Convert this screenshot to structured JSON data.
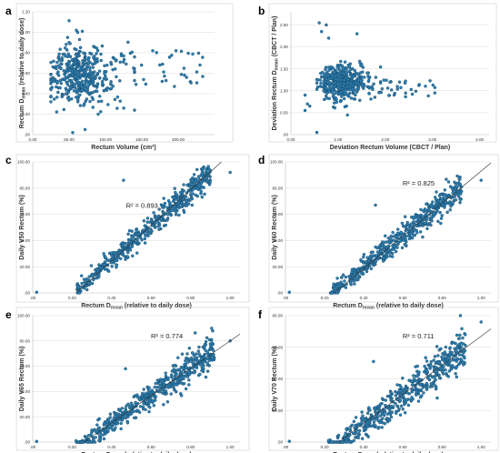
{
  "chart_data": [
    {
      "panel": "a",
      "type": "scatter",
      "xlabel": "Rectum Volume (cm³)",
      "ylabel_main": "Rectum D",
      "ylabel_sub": "mean",
      "ylabel_tail": " (relative to daily dose)",
      "xlim": [
        0,
        250
      ],
      "ylim": [
        0,
        1.2
      ],
      "xticks": [
        "0.00",
        "50.00",
        "100.00",
        "150.00",
        "200.00"
      ],
      "xtick_values": [
        0,
        50,
        100,
        150,
        200
      ],
      "yticks": [
        ".00",
        "0.20",
        "0.40",
        "0.60",
        "0.80",
        "1.00",
        "1.20"
      ],
      "ytick_values": [
        0,
        0.2,
        0.4,
        0.6,
        0.8,
        1.0,
        1.2
      ],
      "cluster": {
        "x_range": [
          25,
          140
        ],
        "x_mode": 55,
        "y_mean": 0.58,
        "y_sd": 0.14
      },
      "tail": {
        "x_range": [
          110,
          240
        ],
        "y_range": [
          0.45,
          0.82
        ]
      },
      "points": [
        [
          60,
          1.02
        ],
        [
          55,
          0.02
        ],
        [
          72,
          0.05
        ],
        [
          90,
          0.2
        ],
        [
          230,
          0.68
        ],
        [
          165,
          0.82
        ],
        [
          178,
          0.52
        ],
        [
          48,
          0.95
        ],
        [
          50,
          0.9
        ]
      ],
      "r2": null
    },
    {
      "panel": "b",
      "type": "scatter",
      "xlabel": "Deviation Rectum Volume (CBCT / Plan)",
      "ylabel_main": "Deviation Rectum D",
      "ylabel_sub": "mean",
      "ylabel_tail": " (CBCT / Plan)",
      "xlim": [
        0,
        4.2
      ],
      "ylim": [
        0,
        2.8
      ],
      "xticks": [
        "0.00",
        "1.00",
        "2.00",
        "3.00",
        "4.00"
      ],
      "xtick_values": [
        0,
        1,
        2,
        3,
        4
      ],
      "yticks": [
        ".00",
        "0.50",
        "1.00",
        "1.50",
        "2.00",
        "2.50"
      ],
      "ytick_values": [
        0,
        0.5,
        1.0,
        1.5,
        2.0,
        2.5
      ],
      "cluster": {
        "x_range": [
          0.55,
          1.9
        ],
        "x_mode": 0.95,
        "y_mean": 1.2,
        "y_sd": 0.2
      },
      "tail": {
        "x_range": [
          1.6,
          3.1
        ],
        "y_range": [
          0.85,
          1.25
        ]
      },
      "points": [
        [
          0.6,
          2.55
        ],
        [
          0.75,
          2.5
        ],
        [
          0.65,
          2.35
        ],
        [
          0.8,
          2.2
        ],
        [
          1.4,
          2.3
        ],
        [
          0.3,
          0.9
        ],
        [
          0.35,
          0.7
        ],
        [
          0.4,
          0.65
        ],
        [
          0.3,
          0.55
        ],
        [
          3.05,
          0.95
        ],
        [
          0.55,
          0.05
        ]
      ],
      "r2": null
    },
    {
      "panel": "c",
      "type": "scatter",
      "xlabel_main": "Rectum D",
      "xlabel_sub": "mean",
      "xlabel_tail": " (relative to daily dose)",
      "ylabel": "Daily V50 Rectum (%)",
      "xlim": [
        0,
        1.05
      ],
      "ylim": [
        0,
        100
      ],
      "xticks": [
        ".00",
        "0.20",
        "0.40",
        "0.60",
        "0.80",
        "1.00"
      ],
      "xtick_values": [
        0,
        0.2,
        0.4,
        0.6,
        0.8,
        1.0
      ],
      "yticks": [
        ".00",
        "20.00",
        "40.00",
        "60.00",
        "80.00",
        "100.00"
      ],
      "ytick_values": [
        0,
        20,
        40,
        60,
        80,
        100
      ],
      "relation": {
        "x_range": [
          0.22,
          0.9
        ],
        "slope": 133,
        "intercept": -28,
        "noise": 4
      },
      "points": [
        [
          0.02,
          0.5
        ],
        [
          0.46,
          86
        ],
        [
          0.36,
          30
        ],
        [
          0.24,
          2
        ],
        [
          1.0,
          92
        ]
      ],
      "regression": {
        "slope": 136,
        "intercept": -30
      },
      "r2": "R² = 0.893"
    },
    {
      "panel": "d",
      "type": "scatter",
      "xlabel_main": "Rectum D",
      "xlabel_sub": "mean",
      "xlabel_tail": " (relative to daily dose)",
      "ylabel": "Daily V60 Rectum (%)",
      "xlim": [
        0,
        1.05
      ],
      "ylim": [
        0,
        100
      ],
      "xticks": [
        ".00",
        "0.20",
        "0.40",
        "0.60",
        "0.80",
        "1.00"
      ],
      "xtick_values": [
        0,
        0.2,
        0.4,
        0.6,
        0.8,
        1.0
      ],
      "yticks": [
        ".00",
        "20.00",
        "40.00",
        "60.00",
        "80.00",
        "100.00"
      ],
      "ytick_values": [
        0,
        20,
        40,
        60,
        80,
        100
      ],
      "relation": {
        "x_range": [
          0.22,
          0.9
        ],
        "slope": 120,
        "intercept": -28,
        "noise": 4.5
      },
      "points": [
        [
          0.02,
          0.5
        ],
        [
          0.46,
          67
        ],
        [
          0.24,
          1
        ],
        [
          1.0,
          86
        ]
      ],
      "regression": {
        "slope": 124,
        "intercept": -31
      },
      "r2": "R² = 0.825"
    },
    {
      "panel": "e",
      "type": "scatter",
      "xlabel_main": "Rectum D",
      "xlabel_sub": "mean",
      "xlabel_tail": " (relative to daily dose)",
      "ylabel": "Daily V65 Rectum (%)",
      "xlim": [
        0,
        1.05
      ],
      "ylim": [
        0,
        100
      ],
      "xticks": [
        ".00",
        "0.20",
        "0.40",
        "0.60",
        "0.80",
        "1.00"
      ],
      "xtick_values": [
        0,
        0.2,
        0.4,
        0.6,
        0.8,
        1.0
      ],
      "yticks": [
        ".00",
        "20.00",
        "40.00",
        "60.00",
        "80.00",
        "100.00"
      ],
      "ytick_values": [
        0,
        20,
        40,
        60,
        80,
        100
      ],
      "relation": {
        "x_range": [
          0.22,
          0.92
        ],
        "slope": 112,
        "intercept": -30,
        "noise": 5
      },
      "points": [
        [
          0.02,
          0.5
        ],
        [
          0.47,
          58
        ],
        [
          0.22,
          1
        ],
        [
          1.0,
          80
        ]
      ],
      "regression": {
        "slope": 108,
        "intercept": -28
      },
      "r2": "R² = 0.774"
    },
    {
      "panel": "f",
      "type": "scatter",
      "xlabel_main": "Rectum D",
      "xlabel_sub": "mean",
      "xlabel_tail": " (relative to daily dose)",
      "ylabel": "Daily V70 Rectum (%)",
      "xlim": [
        0,
        1.05
      ],
      "ylim": [
        0,
        80
      ],
      "xticks": [
        ".00",
        "0.20",
        "0.40",
        "0.60",
        "0.80",
        "1.00"
      ],
      "xtick_values": [
        0,
        0.2,
        0.4,
        0.6,
        0.8,
        1.0
      ],
      "yticks": [
        ".00",
        "20.00",
        "40.00",
        "60.00",
        "80.00"
      ],
      "ytick_values": [
        0,
        20,
        40,
        60,
        80
      ],
      "relation": {
        "x_range": [
          0.22,
          0.92
        ],
        "slope": 96,
        "intercept": -28,
        "noise": 5
      },
      "points": [
        [
          0.02,
          0.5
        ],
        [
          0.45,
          51
        ],
        [
          0.22,
          1
        ],
        [
          1.0,
          76
        ]
      ],
      "regression": {
        "slope": 92,
        "intercept": -25
      },
      "r2": "R² = 0.711"
    }
  ]
}
